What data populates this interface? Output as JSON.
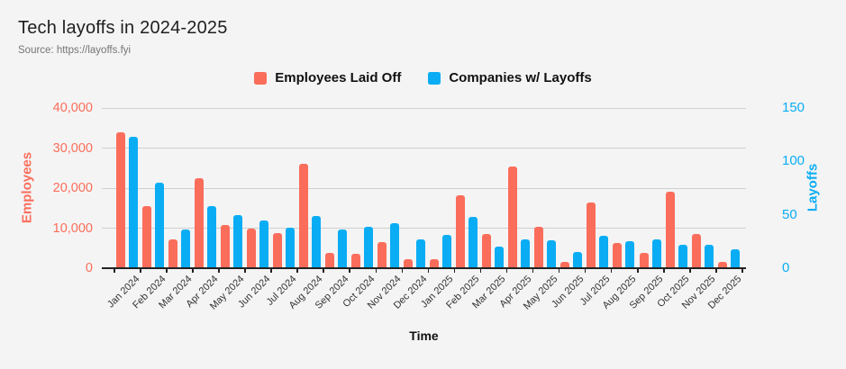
{
  "page": {
    "background": "#f4f4f4",
    "grid_color": "#cfcfcf"
  },
  "header": {
    "title": "Tech layoffs in 2024-2025",
    "source": "Source: https://layoffs.fyi"
  },
  "legend": [
    {
      "label": "Employees Laid Off",
      "color": "#fb6d5b"
    },
    {
      "label": "Companies w/ Layoffs",
      "color": "#0aadf4"
    }
  ],
  "chart_data": {
    "type": "bar",
    "title": "Tech layoffs in 2024-2025",
    "xlabel": "Time",
    "grid": true,
    "legend_position": "top",
    "categories": [
      "Jan 2024",
      "Feb 2024",
      "Mar 2024",
      "Apr 2024",
      "May 2024",
      "Jun 2024",
      "Jul 2024",
      "Aug 2024",
      "Sep 2024",
      "Oct 2024",
      "Nov 2024",
      "Dec 2024",
      "Jan 2025",
      "Feb 2025",
      "Mar 2025",
      "Apr 2025",
      "May 2025",
      "Jun 2025",
      "Jul 2025",
      "Aug 2025",
      "Sep 2025",
      "Oct 2025",
      "Nov 2025",
      "Dec 2025"
    ],
    "series": [
      {
        "name": "Employees Laid Off",
        "axis": "left",
        "color": "#fb6d5b",
        "values": [
          34000,
          15500,
          7200,
          22500,
          10700,
          10000,
          8700,
          26000,
          3800,
          3600,
          6500,
          2200,
          2200,
          18200,
          8600,
          25300,
          10400,
          1500,
          16500,
          6200,
          3900,
          19000,
          8600,
          1500
        ]
      },
      {
        "name": "Companies w/ Layoffs",
        "axis": "right",
        "color": "#0aadf4",
        "values": [
          123,
          80,
          36,
          58,
          50,
          45,
          38,
          49,
          36,
          39,
          42,
          27,
          31,
          48,
          20,
          27,
          26,
          15,
          30,
          25,
          27,
          22,
          22,
          18
        ]
      }
    ],
    "left_axis": {
      "label": "Employees",
      "color": "#fb6d5b",
      "min": 0,
      "max": 40000,
      "tick_labels": [
        "40,000",
        "30,000",
        "20,000",
        "10,000",
        "0"
      ],
      "tick_values": [
        40000,
        30000,
        20000,
        10000,
        0
      ]
    },
    "right_axis": {
      "label": "Layoffs",
      "color": "#0aadf4",
      "min": 0,
      "max": 150,
      "tick_labels": [
        "150",
        "100",
        "50",
        "0"
      ],
      "tick_values": [
        150,
        100,
        50,
        0
      ]
    }
  }
}
